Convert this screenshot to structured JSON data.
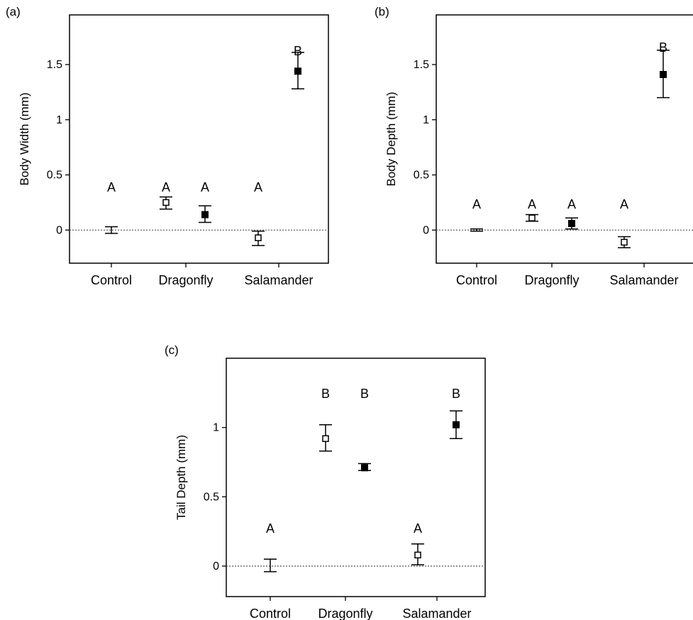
{
  "chart_data": [
    {
      "type": "scatter",
      "panel_label": "(a)",
      "ylabel": "Body Width (mm)",
      "categories": [
        "Control",
        "Dragonfly",
        "Salamander"
      ],
      "ylim": [
        -0.3,
        1.95
      ],
      "yticks": [
        0,
        0.5,
        1,
        1.5
      ],
      "ytick_labels": [
        "0",
        "0.5",
        "1",
        "1.5"
      ],
      "zero_reference_line": true,
      "points": [
        {
          "category": "Control",
          "group": "none",
          "marker": "none",
          "y": 0.0,
          "err_low": -0.03,
          "err_high": 0.03,
          "letter": "A"
        },
        {
          "category": "Dragonfly",
          "group": "open",
          "marker": "open",
          "y": 0.25,
          "err_low": 0.19,
          "err_high": 0.3,
          "letter": "A"
        },
        {
          "category": "Dragonfly",
          "group": "filled",
          "marker": "filled",
          "y": 0.14,
          "err_low": 0.07,
          "err_high": 0.22,
          "letter": "A"
        },
        {
          "category": "Salamander",
          "group": "open",
          "marker": "open",
          "y": -0.07,
          "err_low": -0.14,
          "err_high": -0.01,
          "letter": "A"
        },
        {
          "category": "Salamander",
          "group": "filled",
          "marker": "filled",
          "y": 1.44,
          "err_low": 1.28,
          "err_high": 1.61,
          "letter": "B"
        }
      ]
    },
    {
      "type": "scatter",
      "panel_label": "(b)",
      "ylabel": "Body Depth (mm)",
      "categories": [
        "Control",
        "Dragonfly",
        "Salamander"
      ],
      "ylim": [
        -0.3,
        1.95
      ],
      "yticks": [
        0,
        0.5,
        1,
        1.5
      ],
      "ytick_labels": [
        "0",
        "0.5",
        "1",
        "1.5"
      ],
      "zero_reference_line": true,
      "points": [
        {
          "category": "Control",
          "group": "none",
          "marker": "none",
          "y": 0.0,
          "err_low": -0.01,
          "err_high": 0.01,
          "letter": "A"
        },
        {
          "category": "Dragonfly",
          "group": "open",
          "marker": "open",
          "y": 0.11,
          "err_low": 0.08,
          "err_high": 0.14,
          "letter": "A"
        },
        {
          "category": "Dragonfly",
          "group": "filled",
          "marker": "filled",
          "y": 0.06,
          "err_low": 0.01,
          "err_high": 0.11,
          "letter": "A"
        },
        {
          "category": "Salamander",
          "group": "open",
          "marker": "open",
          "y": -0.11,
          "err_low": -0.16,
          "err_high": -0.06,
          "letter": "A"
        },
        {
          "category": "Salamander",
          "group": "filled",
          "marker": "filled",
          "y": 1.41,
          "err_low": 1.2,
          "err_high": 1.63,
          "letter": "B"
        }
      ]
    },
    {
      "type": "scatter",
      "panel_label": "(c)",
      "ylabel": "Tail Depth (mm)",
      "categories": [
        "Control",
        "Dragonfly",
        "Salamander"
      ],
      "ylim": [
        -0.22,
        1.5
      ],
      "yticks": [
        0,
        0.5,
        1
      ],
      "ytick_labels": [
        "0",
        "0.5",
        "1"
      ],
      "zero_reference_line": true,
      "points": [
        {
          "category": "Control",
          "group": "none",
          "marker": "none",
          "y": 0.0,
          "err_low": -0.04,
          "err_high": 0.05,
          "letter": "A"
        },
        {
          "category": "Dragonfly",
          "group": "open",
          "marker": "open",
          "y": 0.92,
          "err_low": 0.83,
          "err_high": 1.02,
          "letter": "B"
        },
        {
          "category": "Dragonfly",
          "group": "filled",
          "marker": "filled",
          "y": 0.71,
          "err_low": 0.69,
          "err_high": 0.74,
          "letter": "B"
        },
        {
          "category": "Salamander",
          "group": "open",
          "marker": "open",
          "y": 0.08,
          "err_low": 0.01,
          "err_high": 0.16,
          "letter": "A"
        },
        {
          "category": "Salamander",
          "group": "filled",
          "marker": "filled",
          "y": 1.02,
          "err_low": 0.92,
          "err_high": 1.12,
          "letter": "B"
        }
      ]
    }
  ]
}
